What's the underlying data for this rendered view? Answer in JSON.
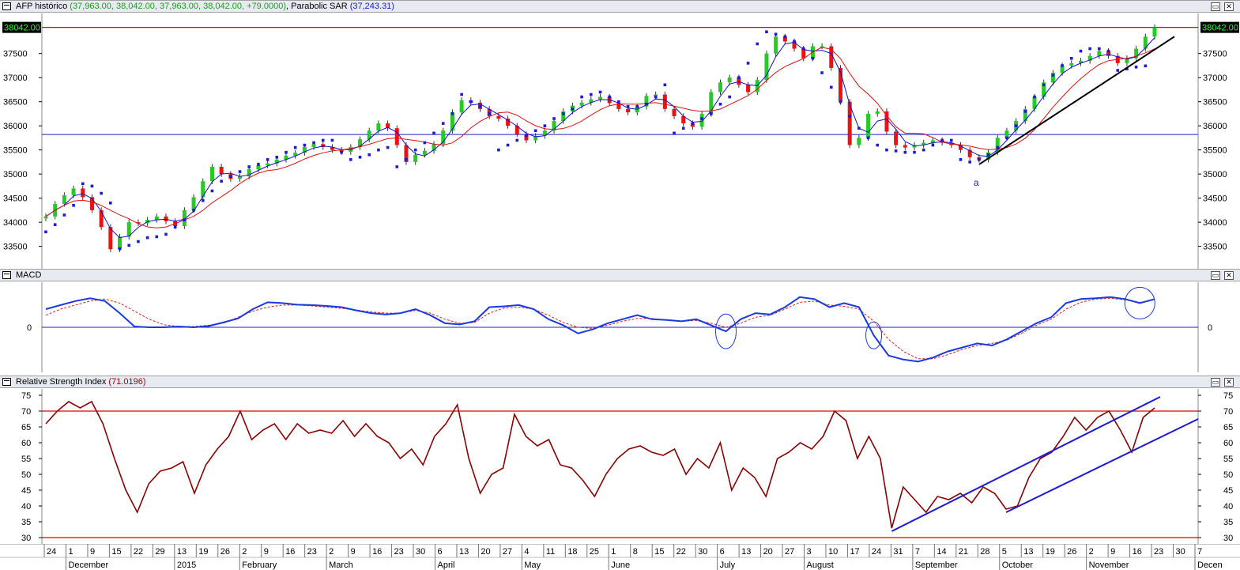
{
  "windows": {
    "price": {
      "title_parts": [
        {
          "text": "AFP histórico ",
          "cls": ""
        },
        {
          "text": "(37,963.00, 38,042.00, 37,963.00, 38,042.00, +79.0000)",
          "cls": "green"
        },
        {
          "text": ", Parabolic SAR ",
          "cls": ""
        },
        {
          "text": "(37,243.31)",
          "cls": "blue"
        }
      ],
      "last_price_label": "38042.00",
      "marker_label": "a"
    },
    "macd": {
      "title_parts": [
        {
          "text": "MACD",
          "cls": ""
        }
      ]
    },
    "rsi": {
      "title_parts": [
        {
          "text": "Relative Strength Index ",
          "cls": ""
        },
        {
          "text": "(71.0196)",
          "cls": "darkred"
        }
      ]
    },
    "buttons": {
      "minimize": "▭",
      "close": "✕"
    }
  },
  "colors": {
    "up_candle": "#22cc22",
    "down_candle": "#ee1111",
    "sar": "#1a1ad8",
    "ma_fast": "#1010d0",
    "ma_slow": "#e01010",
    "macd_line": "#1a3adf",
    "macd_signal": "#e02020",
    "rsi_line": "#8b0000",
    "hline_red": "#e00000",
    "hline_blue": "#2020c0",
    "trendline": "#000000",
    "rsi_trend": "#1a1ad8"
  },
  "chart_data": [
    {
      "type": "candlestick",
      "name": "AFP histórico",
      "ylim": [
        33100,
        38200
      ],
      "y_ticks": [
        33500,
        34000,
        34500,
        35000,
        35500,
        36000,
        36500,
        37000,
        37500
      ],
      "last_value": 38042.0,
      "reference_lines": [
        38042,
        35820
      ],
      "series": [
        {
          "name": "close",
          "values": [
            34120,
            34380,
            34560,
            34700,
            34520,
            34250,
            33900,
            33440,
            33700,
            34000,
            33980,
            34050,
            34120,
            34020,
            33920,
            34250,
            34520,
            34850,
            35150,
            35000,
            34900,
            34950,
            35100,
            35180,
            35220,
            35300,
            35380,
            35440,
            35560,
            35620,
            35560,
            35500,
            35460,
            35560,
            35720,
            35900,
            36050,
            35950,
            35600,
            35250,
            35400,
            35480,
            35620,
            35900,
            36280,
            36530,
            36480,
            36350,
            36200,
            36150,
            36000,
            35830,
            35700,
            35790,
            35900,
            36100,
            36300,
            36420,
            36480,
            36550,
            36600,
            36470,
            36350,
            36280,
            36400,
            36620,
            36650,
            36350,
            36200,
            36050,
            35980,
            36250,
            36700,
            36900,
            37000,
            36850,
            36700,
            36950,
            37500,
            37850,
            37750,
            37600,
            37400,
            37650,
            37650,
            37200,
            36500,
            35600,
            35750,
            36250,
            36300,
            35880,
            35600,
            35550,
            35600,
            35650,
            35700,
            35650,
            35600,
            35500,
            35350,
            35300,
            35450,
            35750,
            35900,
            36100,
            36350,
            36600,
            36900,
            37100,
            37250,
            37300,
            37350,
            37450,
            37550,
            37450,
            37300,
            37400,
            37600,
            37850,
            38042
          ]
        },
        {
          "name": "parabolic_sar",
          "values": [
            33800,
            33950,
            34150,
            34350,
            34800,
            34750,
            34600,
            34400,
            33450,
            33520,
            33600,
            33680,
            33700,
            33750,
            33900,
            34050,
            34250,
            34450,
            34650,
            34850,
            34950,
            35050,
            35150,
            35200,
            35300,
            35350,
            35450,
            35550,
            35600,
            35650,
            35700,
            35700,
            35450,
            35300,
            35350,
            35400,
            35500,
            35550,
            35150,
            35300,
            35500,
            35650,
            35850,
            36050,
            36250,
            36650,
            36500,
            36400,
            36250,
            35500,
            35600,
            35700,
            35800,
            35900,
            36000,
            36150,
            36250,
            36350,
            36600,
            36650,
            36700,
            36600,
            36500,
            36400,
            36400,
            36450,
            36600,
            36850,
            35850,
            35950,
            36050,
            36150,
            36250,
            36450,
            36600,
            37000,
            37300,
            37700,
            37950,
            37900,
            37850,
            37750,
            37600,
            37400,
            37100,
            36800,
            36500,
            36200,
            35950,
            35750,
            35600,
            35500,
            35480,
            35450,
            35450,
            35500,
            35600,
            35700,
            35700,
            35300,
            35250,
            35300,
            35400,
            35550,
            35750,
            36000,
            36300,
            36600,
            36850,
            37050,
            37250,
            37400,
            37550,
            37600,
            37600,
            37550,
            37150,
            37180,
            37220,
            37243
          ]
        }
      ]
    },
    {
      "type": "line",
      "name": "MACD",
      "ylim": [
        -1,
        1
      ],
      "y_ticks": [
        0
      ],
      "series": [
        {
          "name": "MACD",
          "values": [
            0.45,
            0.55,
            0.65,
            0.72,
            0.65,
            0.35,
            0.02,
            0.0,
            0.0,
            0.02,
            0.0,
            0.03,
            0.12,
            0.22,
            0.45,
            0.62,
            0.6,
            0.56,
            0.55,
            0.53,
            0.5,
            0.42,
            0.35,
            0.32,
            0.35,
            0.45,
            0.3,
            0.1,
            0.07,
            0.15,
            0.5,
            0.52,
            0.55,
            0.45,
            0.2,
            0.05,
            -0.15,
            -0.05,
            0.1,
            0.2,
            0.3,
            0.2,
            0.18,
            0.15,
            0.2,
            0.05,
            -0.1,
            0.2,
            0.35,
            0.32,
            0.5,
            0.75,
            0.7,
            0.5,
            0.6,
            0.5,
            -0.2,
            -0.7,
            -0.8,
            -0.85,
            -0.75,
            -0.6,
            -0.5,
            -0.4,
            -0.45,
            -0.3,
            -0.1,
            0.1,
            0.25,
            0.6,
            0.7,
            0.72,
            0.75,
            0.7,
            0.6,
            0.7
          ]
        },
        {
          "name": "Signal",
          "values": [
            0.3,
            0.45,
            0.55,
            0.65,
            0.7,
            0.6,
            0.4,
            0.2,
            0.06,
            0.02,
            0.02,
            0.05,
            0.1,
            0.25,
            0.4,
            0.5,
            0.55,
            0.55,
            0.53,
            0.5,
            0.47,
            0.43,
            0.38,
            0.35,
            0.35,
            0.42,
            0.35,
            0.2,
            0.1,
            0.12,
            0.35,
            0.48,
            0.5,
            0.45,
            0.3,
            0.12,
            0.0,
            -0.03,
            0.05,
            0.15,
            0.22,
            0.22,
            0.18,
            0.15,
            0.17,
            0.1,
            0.0,
            0.1,
            0.25,
            0.3,
            0.45,
            0.62,
            0.65,
            0.55,
            0.52,
            0.45,
            0.15,
            -0.3,
            -0.6,
            -0.78,
            -0.78,
            -0.68,
            -0.55,
            -0.45,
            -0.4,
            -0.32,
            -0.15,
            0.05,
            0.2,
            0.45,
            0.62,
            0.7,
            0.72,
            0.68,
            0.62,
            0.68
          ]
        }
      ]
    },
    {
      "type": "line",
      "name": "Relative Strength Index",
      "ylim": [
        28,
        77
      ],
      "y_ticks": [
        30,
        35,
        40,
        45,
        50,
        55,
        60,
        65,
        70,
        75
      ],
      "reference_lines": [
        70,
        30
      ],
      "series": [
        {
          "name": "RSI",
          "values": [
            66,
            70,
            73,
            71,
            73,
            66,
            55,
            45,
            38,
            47,
            51,
            52,
            54,
            44,
            53,
            58,
            62,
            70,
            61,
            64,
            66,
            61,
            66,
            63,
            64,
            63,
            67,
            62,
            66,
            62,
            60,
            55,
            58,
            53,
            62,
            66,
            72,
            55,
            44,
            50,
            52,
            69,
            62,
            59,
            61,
            53,
            52,
            48,
            43,
            50,
            55,
            58,
            59,
            57,
            56,
            58,
            50,
            55,
            52,
            60,
            45,
            52,
            49,
            43,
            55,
            57,
            60,
            58,
            62,
            70,
            67,
            55,
            62,
            55,
            33,
            46,
            42,
            38,
            43,
            42,
            44,
            41,
            46,
            44,
            39,
            40,
            49,
            55,
            57,
            62,
            68,
            64,
            68,
            70,
            64,
            57,
            68,
            71
          ]
        }
      ]
    }
  ],
  "time_axis": {
    "day_labels": [
      "24",
      "1",
      "9",
      "15",
      "22",
      "29",
      "13",
      "19",
      "26",
      "2",
      "9",
      "16",
      "23",
      "2",
      "9",
      "16",
      "23",
      "30",
      "6",
      "13",
      "20",
      "27",
      "4",
      "11",
      "18",
      "25",
      "1",
      "8",
      "15",
      "22",
      "30",
      "6",
      "13",
      "20",
      "27",
      "3",
      "10",
      "17",
      "24",
      "31",
      "7",
      "14",
      "21",
      "28",
      "5",
      "13",
      "19",
      "26",
      "2",
      "9",
      "16",
      "23",
      "30",
      "7"
    ],
    "month_labels": [
      "December",
      "2015",
      "February",
      "March",
      "April",
      "May",
      "June",
      "July",
      "August",
      "September",
      "October",
      "November",
      "Decen"
    ]
  }
}
